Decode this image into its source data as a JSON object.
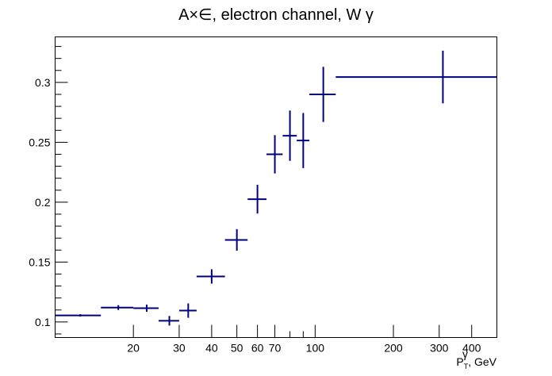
{
  "chart_data": {
    "type": "scatter",
    "title": "A×∈,  electron channel, W  γ",
    "xlabel": "P_T^γ, GeV",
    "xlabel_main": "P",
    "xlabel_sup": "γ",
    "xlabel_sub": "T",
    "xlabel_rest": ", GeV",
    "ylabel": "",
    "xscale": "log",
    "xlim": [
      10,
      500
    ],
    "ylim": [
      0.087,
      0.338
    ],
    "grid": false,
    "legend": "none",
    "colors": {
      "marker": "#000080",
      "axis": "#000000"
    },
    "x_tick_labels": [
      "20",
      "30",
      "40",
      "50",
      "60",
      "70",
      "100",
      "200",
      "300",
      "400"
    ],
    "y_tick_labels": [
      "0.1",
      "0.15",
      "0.2",
      "0.25",
      "0.3"
    ],
    "series": [
      {
        "points": [
          {
            "x": 12.5,
            "x_low": 10,
            "x_high": 15,
            "y": 0.1055,
            "y_err": 0.001
          },
          {
            "x": 17.5,
            "x_low": 15,
            "x_high": 20,
            "y": 0.112,
            "y_err": 0.002
          },
          {
            "x": 22.5,
            "x_low": 20,
            "x_high": 25,
            "y": 0.1115,
            "y_err": 0.003
          },
          {
            "x": 27.5,
            "x_low": 25,
            "x_high": 30,
            "y": 0.101,
            "y_err": 0.004
          },
          {
            "x": 32.5,
            "x_low": 30,
            "x_high": 35,
            "y": 0.1095,
            "y_err": 0.006
          },
          {
            "x": 40,
            "x_low": 35,
            "x_high": 45,
            "y": 0.138,
            "y_err": 0.006
          },
          {
            "x": 50,
            "x_low": 45,
            "x_high": 55,
            "y": 0.1685,
            "y_err": 0.009
          },
          {
            "x": 60,
            "x_low": 55,
            "x_high": 65,
            "y": 0.2025,
            "y_err": 0.012
          },
          {
            "x": 70,
            "x_low": 65,
            "x_high": 75,
            "y": 0.24,
            "y_err": 0.016
          },
          {
            "x": 80,
            "x_low": 75,
            "x_high": 85,
            "y": 0.2555,
            "y_err": 0.021
          },
          {
            "x": 90,
            "x_low": 85,
            "x_high": 95,
            "y": 0.2515,
            "y_err": 0.023
          },
          {
            "x": 107.5,
            "x_low": 95,
            "x_high": 120,
            "y": 0.29,
            "y_err": 0.023
          },
          {
            "x": 310,
            "x_low": 120,
            "x_high": 500,
            "y": 0.3045,
            "y_err": 0.022
          }
        ]
      }
    ]
  }
}
